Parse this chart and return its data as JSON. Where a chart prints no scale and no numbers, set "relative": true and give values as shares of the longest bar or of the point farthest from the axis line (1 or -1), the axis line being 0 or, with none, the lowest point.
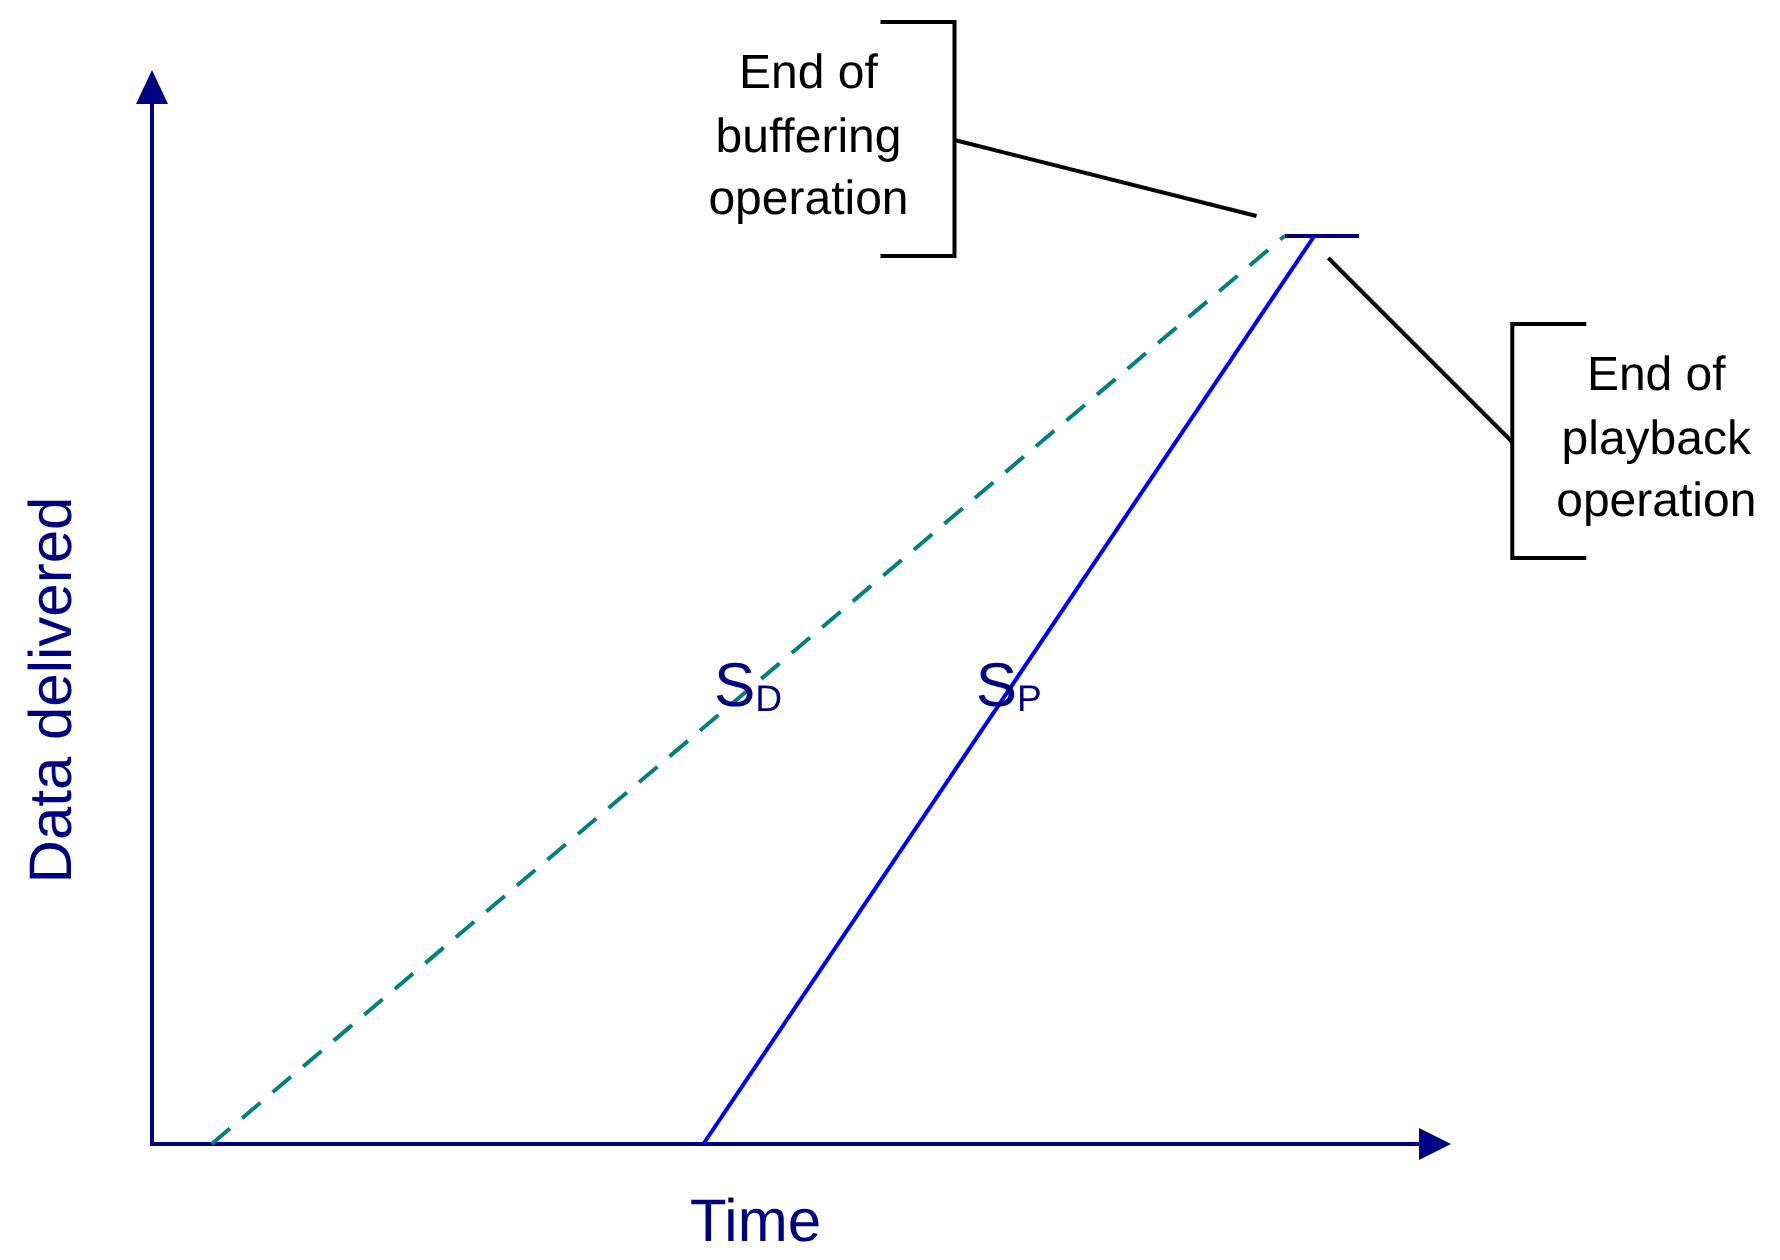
{
  "chart_data": {
    "type": "line",
    "xlabel": "Time",
    "ylabel": "Data delivered",
    "relative": true,
    "categories": [
      null,
      null,
      null,
      null,
      null,
      null,
      null,
      null,
      null,
      null,
      null,
      null,
      null,
      null,
      null,
      null,
      null,
      null,
      null,
      null,
      null,
      null,
      null,
      null,
      null,
      null,
      null,
      null,
      null,
      null,
      null,
      null,
      null,
      null,
      null,
      null,
      null,
      null,
      null,
      null,
      null,
      null,
      null,
      null,
      null,
      null,
      null,
      null,
      null,
      null,
      null,
      null,
      null,
      null,
      null,
      null,
      null,
      null,
      null,
      null,
      null,
      null,
      null,
      null,
      null,
      null,
      null,
      null,
      null,
      null,
      null,
      null,
      null,
      null,
      null,
      null,
      null,
      null,
      null,
      null,
      null,
      null
    ],
    "series": [
      {
        "name": "S$_{D}$",
        "color": "#008080",
        "line_style": "dashed",
        "values": [
          null,
          null,
          null,
          null,
          0,
          null,
          null,
          null,
          null,
          null,
          null,
          null,
          null,
          null,
          null,
          null,
          null,
          null,
          null,
          null,
          null,
          null,
          null,
          null,
          null,
          null,
          null,
          null,
          null,
          null,
          null,
          null,
          null,
          null,
          null,
          null,
          null,
          null,
          null,
          null,
          null,
          null,
          null,
          null,
          null,
          null,
          null,
          null,
          null,
          null,
          null,
          null,
          null,
          null,
          null,
          null,
          null,
          null,
          null,
          null,
          null,
          null,
          null,
          null,
          null,
          null,
          null,
          null,
          null,
          null,
          null,
          null,
          null,
          null,
          null,
          null,
          1,
          null,
          null,
          null,
          null,
          null
        ]
      },
      {
        "name": "S$_{P}$",
        "color": "#0000ff",
        "values": [
          null,
          null,
          null,
          null,
          null,
          null,
          null,
          null,
          null,
          null,
          null,
          null,
          null,
          null,
          null,
          null,
          null,
          null,
          null,
          null,
          null,
          null,
          null,
          null,
          null,
          null,
          null,
          null,
          null,
          null,
          null,
          null,
          null,
          null,
          null,
          null,
          null,
          0,
          null,
          null,
          null,
          null,
          null,
          null,
          null,
          null,
          null,
          null,
          null,
          null,
          null,
          null,
          null,
          null,
          null,
          null,
          null,
          null,
          null,
          null,
          null,
          null,
          null,
          null,
          null,
          null,
          null,
          null,
          null,
          null,
          null,
          null,
          null,
          null,
          null,
          null,
          null,
          null,
          1,
          null,
          null,
          null
        ]
      },
      {
        "color": "#000080",
        "values": [
          null,
          null,
          null,
          null,
          null,
          null,
          null,
          null,
          null,
          null,
          null,
          null,
          null,
          null,
          null,
          null,
          null,
          null,
          null,
          null,
          null,
          null,
          null,
          null,
          null,
          null,
          null,
          null,
          null,
          null,
          null,
          null,
          null,
          null,
          null,
          null,
          null,
          null,
          null,
          null,
          null,
          null,
          null,
          null,
          null,
          null,
          null,
          null,
          null,
          null,
          null,
          null,
          null,
          null,
          null,
          null,
          null,
          null,
          null,
          null,
          null,
          null,
          null,
          null,
          null,
          null,
          null,
          null,
          null,
          null,
          null,
          null,
          null,
          null,
          null,
          null,
          1,
          1,
          1,
          1,
          1,
          1
        ]
      }
    ],
    "annotations": [
      "End of buffering operation",
      "End of playback operation"
    ],
    "legend": false,
    "grid": false,
    "marker": "none",
    "line_style": "solid"
  }
}
